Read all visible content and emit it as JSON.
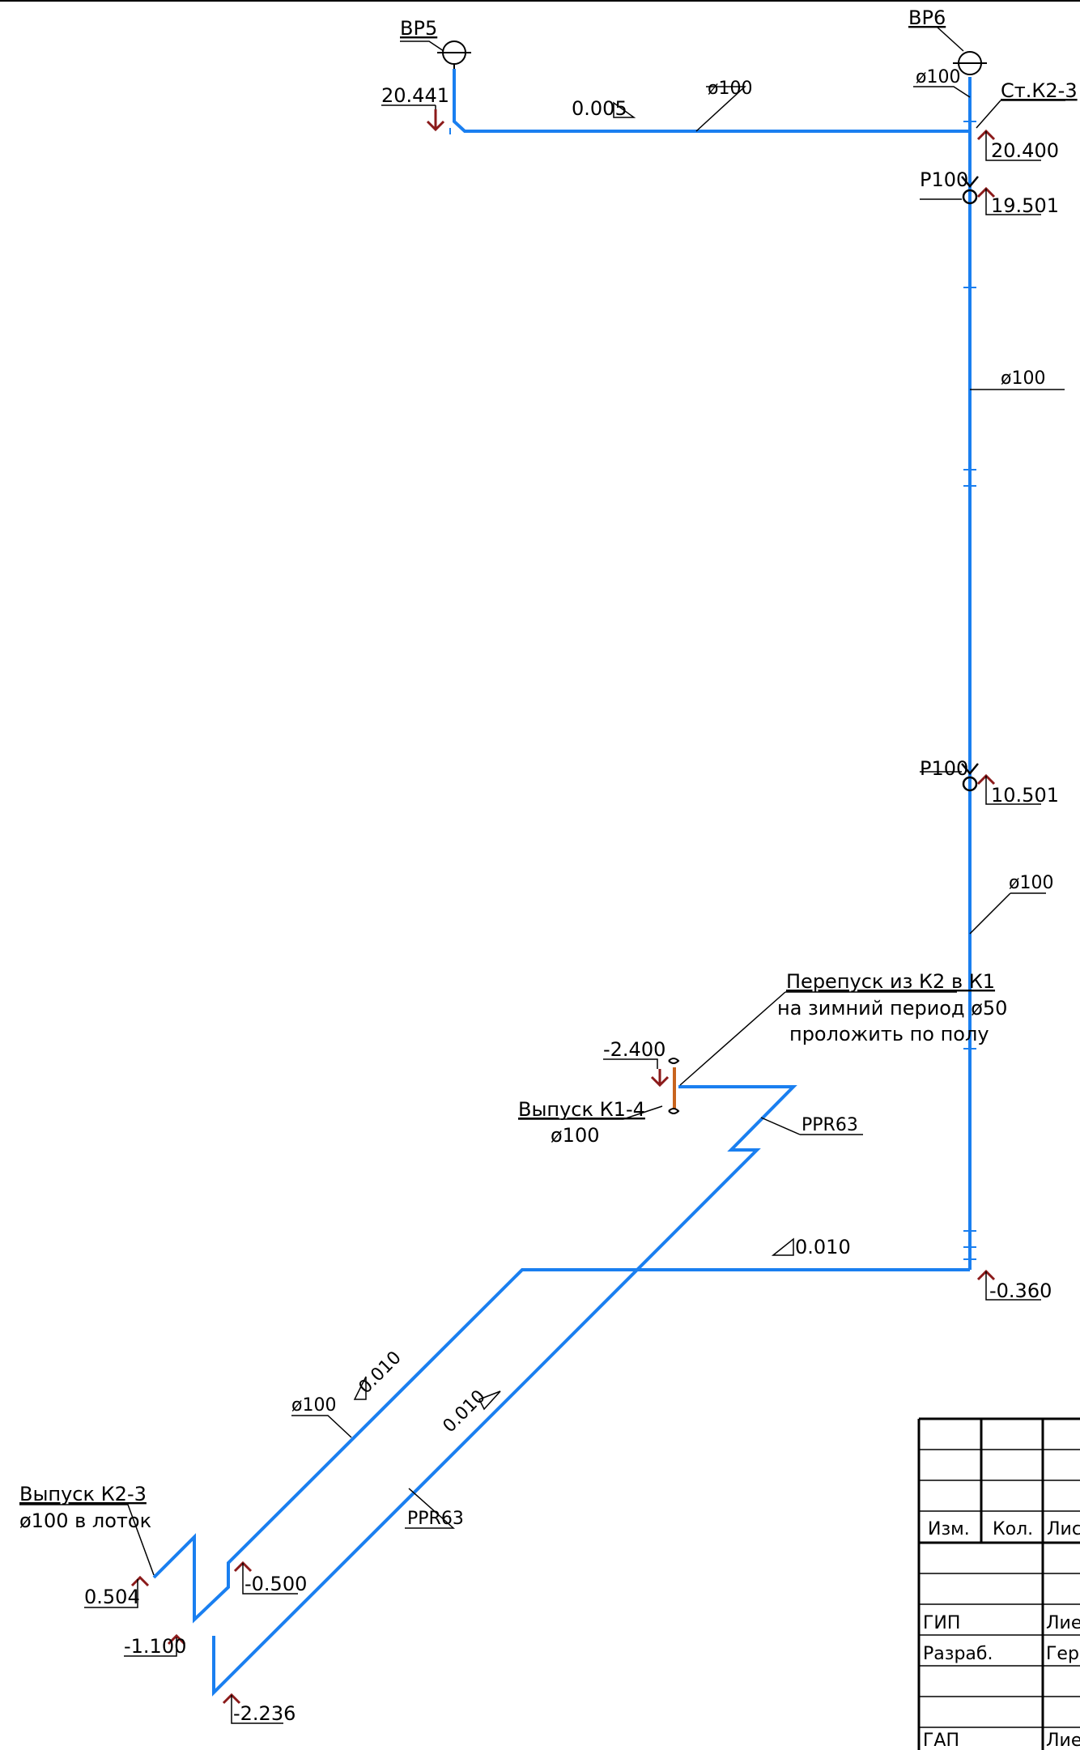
{
  "labels": {
    "vp5": "ВР5",
    "vp6": "ВР6",
    "st_k2_3": "Ст.К2-3",
    "p100_a": "Р100",
    "p100_b": "Р100",
    "d100_top": "ø100",
    "d100_vp6": "ø100",
    "d100_mid": "ø100",
    "d100_low": "ø100",
    "d100_diag": "ø100",
    "slope_top": "0.005",
    "slope_mid": "0.010",
    "slope_diag1": "0.010",
    "slope_diag2": "0.010",
    "elev_20441": "20.441",
    "elev_20400": "20.400",
    "elev_19501": "19.501",
    "elev_10501": "10.501",
    "elev_m2400": "-2.400",
    "elev_m0360": "-0.360",
    "elev_0504": "0.504",
    "elev_m0500": "-0.500",
    "elev_m1100": "-1.100",
    "elev_m2236": "-2.236",
    "bypass_note_1": "Перепуск из К2 в К1",
    "bypass_note_2": "на зимний период ø50",
    "bypass_note_3": "проложить по полу",
    "outlet_k1_4": "Выпуск К1-4",
    "outlet_k1_4_d": "ø100",
    "ppr63_a": "PPR63",
    "ppr63_b": "PPR63",
    "outlet_k2_3": "Выпуск К2-3",
    "outlet_k2_3_d": "ø100 в лоток"
  },
  "title_block": {
    "col_izm": "Изм.",
    "col_kol": "Кол.",
    "col_list": "Лис",
    "row_gip": "ГИП",
    "row_gip_name": "Лиер",
    "row_razrab": "Разраб.",
    "row_razrab_name": "Герм",
    "row_gap": "ГАП",
    "row_gap_name": "Лиер"
  },
  "colors": {
    "pipe": "#1a7ff0",
    "elevation_marker": "#8b1a1a",
    "bypass": "#c8641e",
    "text": "#000000"
  }
}
